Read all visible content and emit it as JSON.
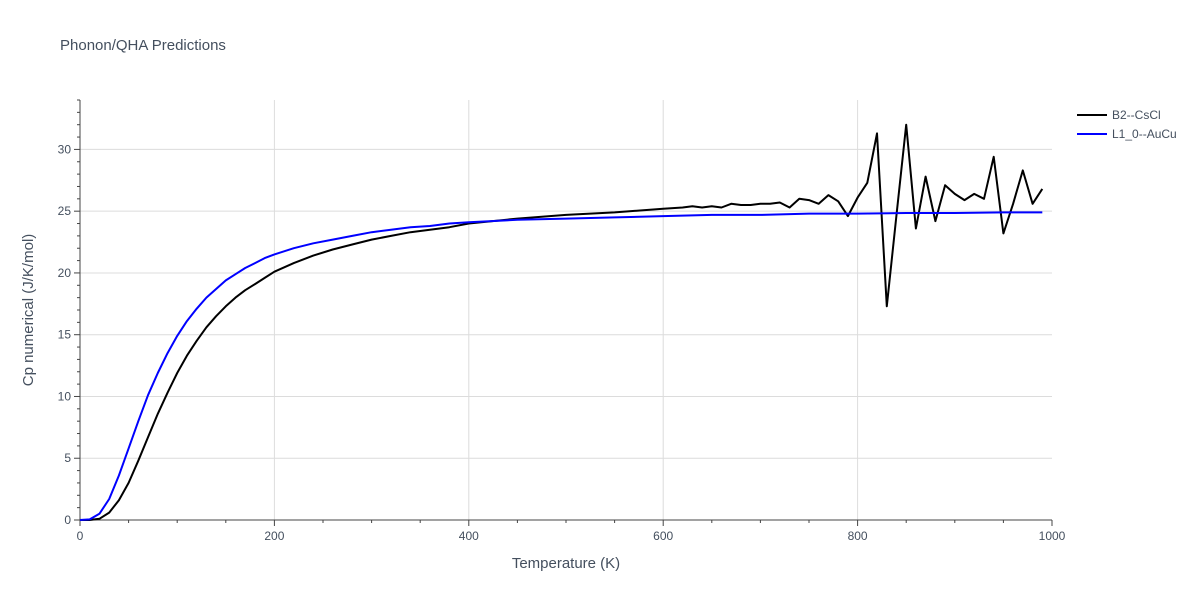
{
  "chart_data": {
    "type": "line",
    "title": "Phonon/QHA Predictions",
    "xlabel": "Temperature (K)",
    "ylabel": "Cp numerical (J/K/mol)",
    "xlim": [
      0,
      1000
    ],
    "ylim": [
      0,
      34
    ],
    "xticks": [
      0,
      200,
      400,
      600,
      800,
      1000
    ],
    "yticks": [
      0,
      5,
      10,
      15,
      20,
      25,
      30
    ],
    "grid": true,
    "legend": "top-right",
    "series": [
      {
        "name": "B2--CsCl",
        "color": "#000000",
        "x": [
          0,
          10,
          20,
          30,
          40,
          50,
          60,
          70,
          80,
          90,
          100,
          110,
          120,
          130,
          140,
          150,
          160,
          170,
          180,
          190,
          200,
          220,
          240,
          260,
          280,
          300,
          320,
          340,
          360,
          380,
          400,
          450,
          500,
          550,
          600,
          620,
          630,
          640,
          650,
          660,
          670,
          680,
          690,
          700,
          710,
          720,
          730,
          740,
          750,
          760,
          770,
          780,
          790,
          800,
          810,
          820,
          830,
          840,
          850,
          860,
          870,
          880,
          890,
          900,
          910,
          920,
          930,
          940,
          950,
          960,
          970,
          980,
          990
        ],
        "y": [
          0,
          0,
          0.1,
          0.6,
          1.6,
          3.0,
          4.8,
          6.7,
          8.6,
          10.3,
          11.9,
          13.3,
          14.5,
          15.6,
          16.5,
          17.3,
          18.0,
          18.6,
          19.1,
          19.6,
          20.1,
          20.8,
          21.4,
          21.9,
          22.3,
          22.7,
          23.0,
          23.3,
          23.5,
          23.7,
          24.0,
          24.4,
          24.7,
          24.9,
          25.2,
          25.3,
          25.4,
          25.3,
          25.4,
          25.3,
          25.6,
          25.5,
          25.5,
          25.6,
          25.6,
          25.7,
          25.3,
          26.0,
          25.9,
          25.6,
          26.3,
          25.8,
          24.6,
          26.1,
          27.3,
          31.3,
          17.3,
          24.7,
          32.0,
          23.6,
          27.8,
          24.2,
          27.1,
          26.4,
          25.9,
          26.4,
          26.0,
          29.4,
          23.2,
          25.6,
          28.3,
          25.6,
          26.8
        ]
      },
      {
        "name": "L1_0--AuCu",
        "color": "#0000ff",
        "x": [
          0,
          10,
          20,
          30,
          40,
          50,
          60,
          70,
          80,
          90,
          100,
          110,
          120,
          130,
          140,
          150,
          160,
          170,
          180,
          190,
          200,
          220,
          240,
          260,
          280,
          300,
          320,
          340,
          360,
          380,
          400,
          450,
          500,
          550,
          600,
          650,
          700,
          750,
          800,
          850,
          900,
          950,
          990
        ],
        "y": [
          0,
          0.05,
          0.5,
          1.7,
          3.6,
          5.8,
          8.0,
          10.1,
          11.9,
          13.5,
          14.9,
          16.1,
          17.1,
          18.0,
          18.7,
          19.4,
          19.9,
          20.4,
          20.8,
          21.2,
          21.5,
          22.0,
          22.4,
          22.7,
          23.0,
          23.3,
          23.5,
          23.7,
          23.8,
          24.0,
          24.1,
          24.3,
          24.4,
          24.5,
          24.6,
          24.7,
          24.7,
          24.8,
          24.8,
          24.85,
          24.85,
          24.9,
          24.9
        ]
      }
    ]
  }
}
